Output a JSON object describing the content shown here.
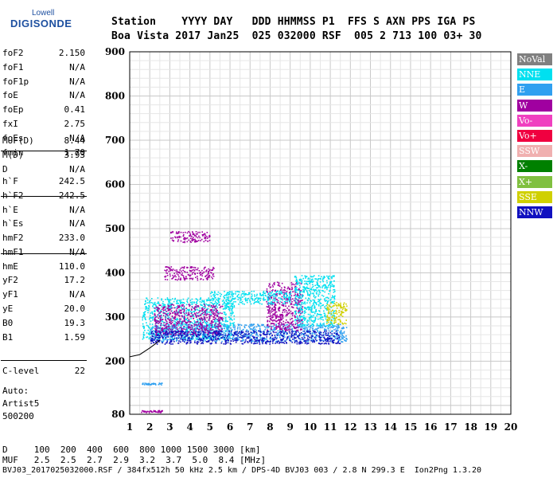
{
  "logo": {
    "top": "Lowell",
    "bottom": "DIGISONDE"
  },
  "header": {
    "line1": "Station    YYYY DAY   DDD HHMMSS P1  FFS S AXN PPS IGA PS",
    "line2": "Boa Vista 2017 Jan25  025 032000 RSF  005 2 713 100 03+ 30"
  },
  "params_group1": [
    {
      "name": "foF2",
      "value": "2.150"
    },
    {
      "name": "foF1",
      "value": "N/A"
    },
    {
      "name": "foF1p",
      "value": "N/A"
    },
    {
      "name": "foE",
      "value": "N/A"
    },
    {
      "name": "foEp",
      "value": "0.41"
    },
    {
      "name": "fxI",
      "value": "2.75"
    },
    {
      "name": "foEs",
      "value": "N/A"
    },
    {
      "name": "fmin",
      "value": "1.70"
    }
  ],
  "params_group2": [
    {
      "name": "MUF(D)",
      "value": "8.44"
    },
    {
      "name": "M(D)",
      "value": "3.93"
    },
    {
      "name": "D",
      "value": "N/A"
    }
  ],
  "params_group3": [
    {
      "name": "h`F",
      "value": "242.5"
    },
    {
      "name": "h`F2",
      "value": "242.5"
    },
    {
      "name": "h`E",
      "value": "N/A"
    },
    {
      "name": "h`Es",
      "value": "N/A"
    }
  ],
  "params_group4": [
    {
      "name": "hmF2",
      "value": "233.0"
    },
    {
      "name": "hmF1",
      "value": "N/A"
    },
    {
      "name": "hmE",
      "value": "110.0"
    },
    {
      "name": "yF2",
      "value": "17.2"
    },
    {
      "name": "yF1",
      "value": "N/A"
    },
    {
      "name": "yE",
      "value": "20.0"
    },
    {
      "name": "B0",
      "value": "19.3"
    },
    {
      "name": "B1",
      "value": "1.59"
    }
  ],
  "clevel": {
    "name": "C-level",
    "value": "22"
  },
  "auto_lines": [
    "Auto:",
    "Artist5",
    "500200"
  ],
  "footer": {
    "d_line": "D     100  200  400  600  800 1000 1500 3000 [km]",
    "muf_line": "MUF   2.5  2.5  2.7  2.9  3.2  3.7  5.0  8.4 [MHz]",
    "file_line": "BVJ03_2017025032000.RSF / 384fx512h 50 kHz 2.5 km / DPS-4D BVJ03 003 / 2.8 N 299.3 E  Ion2Png 1.3.20"
  },
  "legend": [
    {
      "label": "NoVal",
      "color": "#808080"
    },
    {
      "label": "NNE",
      "color": "#00e0f0"
    },
    {
      "label": "E",
      "color": "#30a0f0"
    },
    {
      "label": "W",
      "color": "#a000a0"
    },
    {
      "label": "Vo-",
      "color": "#f040c0"
    },
    {
      "label": "Vo+",
      "color": "#f00040"
    },
    {
      "label": "SSW",
      "color": "#f0b0b0"
    },
    {
      "label": "X-",
      "color": "#008000"
    },
    {
      "label": "X+",
      "color": "#80c040"
    },
    {
      "label": "SSE",
      "color": "#d0d000"
    },
    {
      "label": "NNW",
      "color": "#1010c0"
    }
  ],
  "chart_data": {
    "type": "scatter",
    "x_ticks": [
      "1",
      "2",
      "3",
      "4",
      "5",
      "6",
      "7",
      "8",
      "9",
      "10",
      "11",
      "12",
      "13",
      "14",
      "15",
      "16",
      "17",
      "18",
      "19",
      "20"
    ],
    "y_ticks": [
      "80",
      "200",
      "300",
      "400",
      "500",
      "600",
      "700",
      "800",
      "900"
    ],
    "xlim": [
      1,
      20
    ],
    "ylim": [
      80,
      900
    ],
    "grid": true,
    "legend_position": "right",
    "echo_regions": [
      {
        "color": "#00e0f0",
        "x": [
          1.6,
          6.2
        ],
        "y": [
          250,
          345
        ]
      },
      {
        "color": "#30a0f0",
        "x": [
          2.0,
          11.8
        ],
        "y": [
          245,
          285
        ]
      },
      {
        "color": "#a000a0",
        "x": [
          2.2,
          5.6
        ],
        "y": [
          260,
          330
        ]
      },
      {
        "color": "#a000a0",
        "x": [
          2.7,
          5.2
        ],
        "y": [
          385,
          415
        ]
      },
      {
        "color": "#1010c0",
        "x": [
          2.0,
          11.5
        ],
        "y": [
          240,
          270
        ]
      },
      {
        "color": "#a000a0",
        "x": [
          7.8,
          9.6
        ],
        "y": [
          270,
          380
        ]
      },
      {
        "color": "#00e0f0",
        "x": [
          5.0,
          9.0
        ],
        "y": [
          330,
          360
        ]
      },
      {
        "color": "#00e0f0",
        "x": [
          9.2,
          11.2
        ],
        "y": [
          280,
          395
        ]
      },
      {
        "color": "#d0d000",
        "x": [
          10.8,
          11.8
        ],
        "y": [
          285,
          335
        ]
      },
      {
        "color": "#a000a0",
        "x": [
          3.0,
          5.0
        ],
        "y": [
          470,
          495
        ]
      },
      {
        "color": "#30a0f0",
        "x": [
          1.6,
          2.6
        ],
        "y": [
          148,
          152
        ]
      },
      {
        "color": "#a000a0",
        "x": [
          1.5,
          2.6
        ],
        "y": [
          85,
          90
        ]
      }
    ],
    "trace": {
      "x": [
        1.0,
        1.5,
        2.0,
        2.3,
        2.5
      ],
      "y": [
        210,
        215,
        230,
        240,
        248
      ]
    }
  }
}
